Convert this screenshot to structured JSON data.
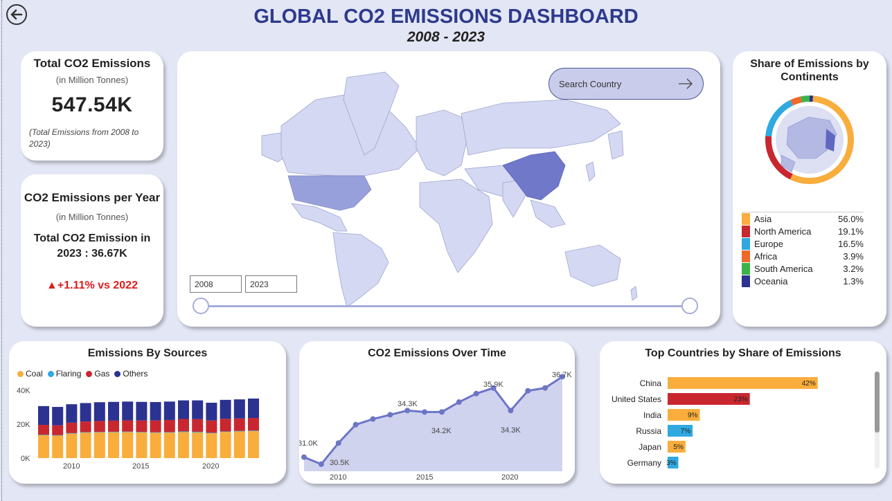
{
  "header": {
    "title": "GLOBAL CO2 EMISSIONS DASHBOARD",
    "subtitle": "2008 - 2023"
  },
  "kpi_total": {
    "title": "Total CO2 Emissions",
    "unit": "(in Million Tonnes)",
    "value": "547.54K",
    "note": "(Total Emissions from 2008 to 2023)"
  },
  "kpi_year": {
    "title": "CO2 Emissions per Year",
    "unit": "(in Million Tonnes)",
    "line1": "Total CO2 Emission in",
    "line2": "2023 :  36.67K",
    "delta": "+1.11% vs 2022",
    "delta_color": "#e01a1a"
  },
  "map": {
    "search_placeholder": "Search Country",
    "year_from": "2008",
    "year_to": "2023",
    "highlight_china": "#6f78c9",
    "highlight_usa": "#98a0dc",
    "land_color": "#d4d8f2"
  },
  "share_continents": {
    "title_line1": "Share of Emissions by",
    "title_line2": "Continents",
    "items": [
      {
        "name": "Asia",
        "pct": "56.0%",
        "value": 56.0,
        "color": "#f9ad3c"
      },
      {
        "name": "North America",
        "pct": "19.1%",
        "value": 19.1,
        "color": "#c9272f"
      },
      {
        "name": "Europe",
        "pct": "16.5%",
        "value": 16.5,
        "color": "#2fa9e0"
      },
      {
        "name": "Africa",
        "pct": "3.9%",
        "value": 3.9,
        "color": "#f0682a"
      },
      {
        "name": "South America",
        "pct": "3.2%",
        "value": 3.2,
        "color": "#3cb34a"
      },
      {
        "name": "Oceania",
        "pct": "1.3%",
        "value": 1.3,
        "color": "#2c3290"
      }
    ]
  },
  "sources_chart": {
    "title": "Emissions By Sources",
    "legend": [
      "Coal",
      "Flaring",
      "Gas",
      "Others"
    ],
    "colors": {
      "Coal": "#f9ad3c",
      "Flaring": "#2fa9e0",
      "Gas": "#c9272f",
      "Others": "#2c3290"
    },
    "y_ticks": [
      "40K",
      "20K",
      "0K"
    ],
    "x_ticks": [
      "2010",
      "2015",
      "2020"
    ]
  },
  "time_chart": {
    "title": "CO2 Emissions Over Time",
    "x_ticks": [
      "2010",
      "2015",
      "2020"
    ],
    "labels": [
      "31.0K",
      "30.5K",
      "34.3K",
      "34.2K",
      "35.9K",
      "34.3K",
      "36.7K"
    ]
  },
  "countries_chart": {
    "title": "Top Countries by Share of Emissions"
  },
  "chart_data": [
    {
      "type": "bar",
      "title": "Emissions By Sources",
      "stacked": true,
      "categories": [
        2008,
        2009,
        2010,
        2011,
        2012,
        2013,
        2014,
        2015,
        2016,
        2017,
        2018,
        2019,
        2020,
        2021,
        2022,
        2023
      ],
      "series": [
        {
          "name": "Coal",
          "values": [
            13.6,
            13.4,
            14.6,
            15.2,
            15.3,
            15.4,
            15.5,
            15.3,
            15.1,
            15.2,
            15.5,
            15.3,
            14.8,
            15.6,
            15.9,
            16.1
          ]
        },
        {
          "name": "Flaring",
          "values": [
            0.3,
            0.3,
            0.3,
            0.3,
            0.3,
            0.3,
            0.3,
            0.3,
            0.3,
            0.3,
            0.4,
            0.4,
            0.3,
            0.3,
            0.3,
            0.3
          ]
        },
        {
          "name": "Gas",
          "values": [
            5.9,
            5.8,
            6.2,
            6.3,
            6.5,
            6.6,
            6.7,
            6.8,
            7.0,
            7.2,
            7.4,
            7.5,
            7.3,
            7.5,
            7.4,
            7.5
          ]
        },
        {
          "name": "Others",
          "values": [
            11.2,
            11.0,
            11.0,
            11.0,
            11.2,
            11.2,
            11.2,
            11.1,
            11.0,
            11.0,
            11.1,
            11.2,
            10.6,
            11.3,
            11.4,
            11.6
          ]
        }
      ],
      "ylim": [
        0,
        40
      ]
    },
    {
      "type": "area",
      "title": "CO2 Emissions Over Time",
      "x": [
        2008,
        2009,
        2010,
        2011,
        2012,
        2013,
        2014,
        2015,
        2016,
        2017,
        2018,
        2019,
        2020,
        2021,
        2022,
        2023
      ],
      "y": [
        31.0,
        30.5,
        32.0,
        33.3,
        33.7,
        34.0,
        34.3,
        34.2,
        34.2,
        34.9,
        35.5,
        35.9,
        34.3,
        35.7,
        35.9,
        36.7
      ],
      "ylim": [
        30,
        37.5
      ]
    },
    {
      "type": "bar",
      "orientation": "horizontal",
      "title": "Top Countries by Share of Emissions",
      "categories": [
        "China",
        "United States",
        "India",
        "Russia",
        "Japan",
        "Germany"
      ],
      "values": [
        42,
        23,
        9,
        7,
        5,
        3
      ],
      "value_labels": [
        "42%",
        "23%",
        "9%",
        "7%",
        "5%",
        "3%"
      ],
      "colors": [
        "#f9ad3c",
        "#c9272f",
        "#f9ad3c",
        "#2fa9e0",
        "#f9ad3c",
        "#2fa9e0"
      ],
      "xlim": [
        0,
        50
      ]
    }
  ]
}
